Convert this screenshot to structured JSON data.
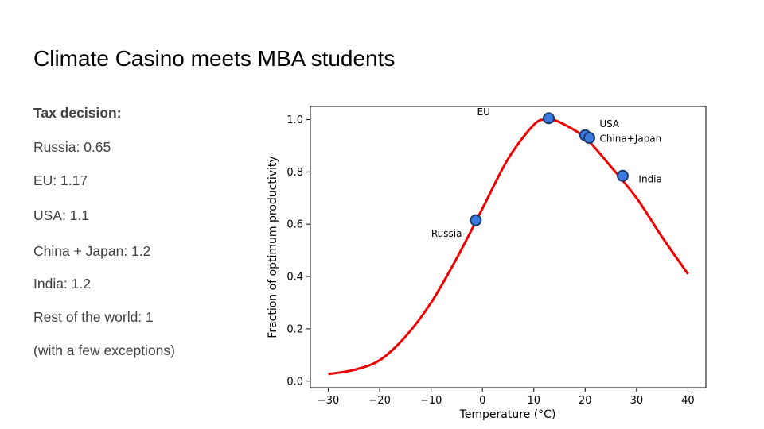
{
  "slide": {
    "title": "Climate Casino meets MBA students",
    "tax_heading": "Tax decision:",
    "lines": [
      "Russia: 0.65",
      "EU: 1.17",
      "USA: 1.1",
      "China + Japan: 1.2",
      "India: 1.2",
      "Rest of the world: 1",
      "(with a few exceptions)"
    ]
  },
  "chart_data": {
    "type": "line",
    "xlabel": "Temperature (°C)",
    "ylabel": "Fraction of optimum productivity",
    "xlim": [
      -33.5,
      43.5
    ],
    "ylim": [
      -0.025,
      1.05
    ],
    "xticks": [
      -30,
      -20,
      -10,
      0,
      10,
      20,
      30,
      40
    ],
    "xtick_labels": [
      "−30",
      "−20",
      "−10",
      "0",
      "10",
      "20",
      "30",
      "40"
    ],
    "yticks": [
      0.0,
      0.2,
      0.4,
      0.6,
      0.8,
      1.0
    ],
    "ytick_labels": [
      "0.0",
      "0.2",
      "0.4",
      "0.6",
      "0.8",
      "1.0"
    ],
    "grid": false,
    "curve": {
      "color": "#ee0000",
      "x": [
        -30,
        -25,
        -20,
        -15,
        -10,
        -5,
        0,
        5,
        10,
        12.5,
        15,
        20,
        25,
        30,
        35,
        40
      ],
      "y": [
        0.027,
        0.043,
        0.08,
        0.17,
        0.3,
        0.47,
        0.66,
        0.85,
        0.98,
        1.0,
        0.99,
        0.93,
        0.82,
        0.7,
        0.55,
        0.41
      ]
    },
    "points": [
      {
        "label": "Russia",
        "x": -1.3,
        "y": 0.615
      },
      {
        "label": "EU",
        "x": 12.9,
        "y": 1.005
      },
      {
        "label": "USA",
        "x": 20.0,
        "y": 0.94
      },
      {
        "label": "China+Japan",
        "x": 20.8,
        "y": 0.93
      },
      {
        "label": "India",
        "x": 27.3,
        "y": 0.785
      }
    ],
    "point_color": "#3a7ae0"
  }
}
